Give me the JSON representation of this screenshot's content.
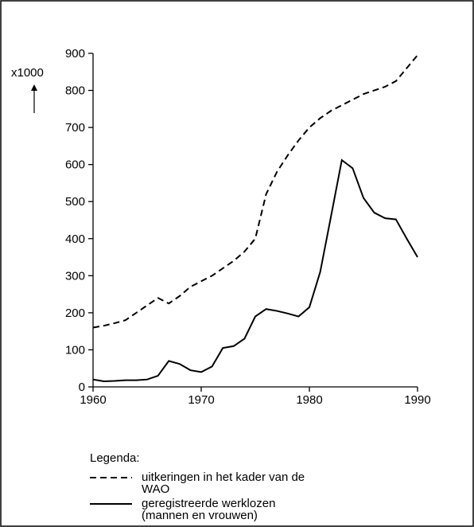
{
  "chart_data": {
    "type": "line",
    "y_unit_label": "x1000",
    "legend_title": "Legenda:",
    "x": [
      1960,
      1961,
      1962,
      1963,
      1964,
      1965,
      1966,
      1967,
      1968,
      1969,
      1970,
      1971,
      1972,
      1973,
      1974,
      1975,
      1976,
      1977,
      1978,
      1979,
      1980,
      1981,
      1982,
      1983,
      1984,
      1985,
      1986,
      1987,
      1988,
      1989,
      1990
    ],
    "series": [
      {
        "name": "uitkeringen in het kader van de WAO",
        "color": "#000000",
        "dash": true,
        "values": [
          160,
          165,
          172,
          180,
          200,
          220,
          240,
          225,
          245,
          270,
          285,
          300,
          320,
          340,
          365,
          400,
          520,
          580,
          625,
          665,
          700,
          725,
          745,
          760,
          775,
          790,
          800,
          810,
          825,
          860,
          895
        ]
      },
      {
        "name": "geregistreerde werklozen (mannen en vrouwen)",
        "color": "#000000",
        "dash": false,
        "values": [
          20,
          15,
          16,
          18,
          18,
          20,
          30,
          70,
          62,
          45,
          40,
          55,
          105,
          110,
          130,
          190,
          210,
          205,
          198,
          190,
          215,
          310,
          460,
          612,
          590,
          510,
          470,
          455,
          452,
          400,
          350
        ]
      }
    ],
    "xlim": [
      1960,
      1990
    ],
    "xticks": [
      1960,
      1970,
      1980,
      1990
    ],
    "ylim": [
      0,
      900
    ],
    "yticks": [
      0,
      100,
      200,
      300,
      400,
      500,
      600,
      700,
      800,
      900
    ]
  }
}
